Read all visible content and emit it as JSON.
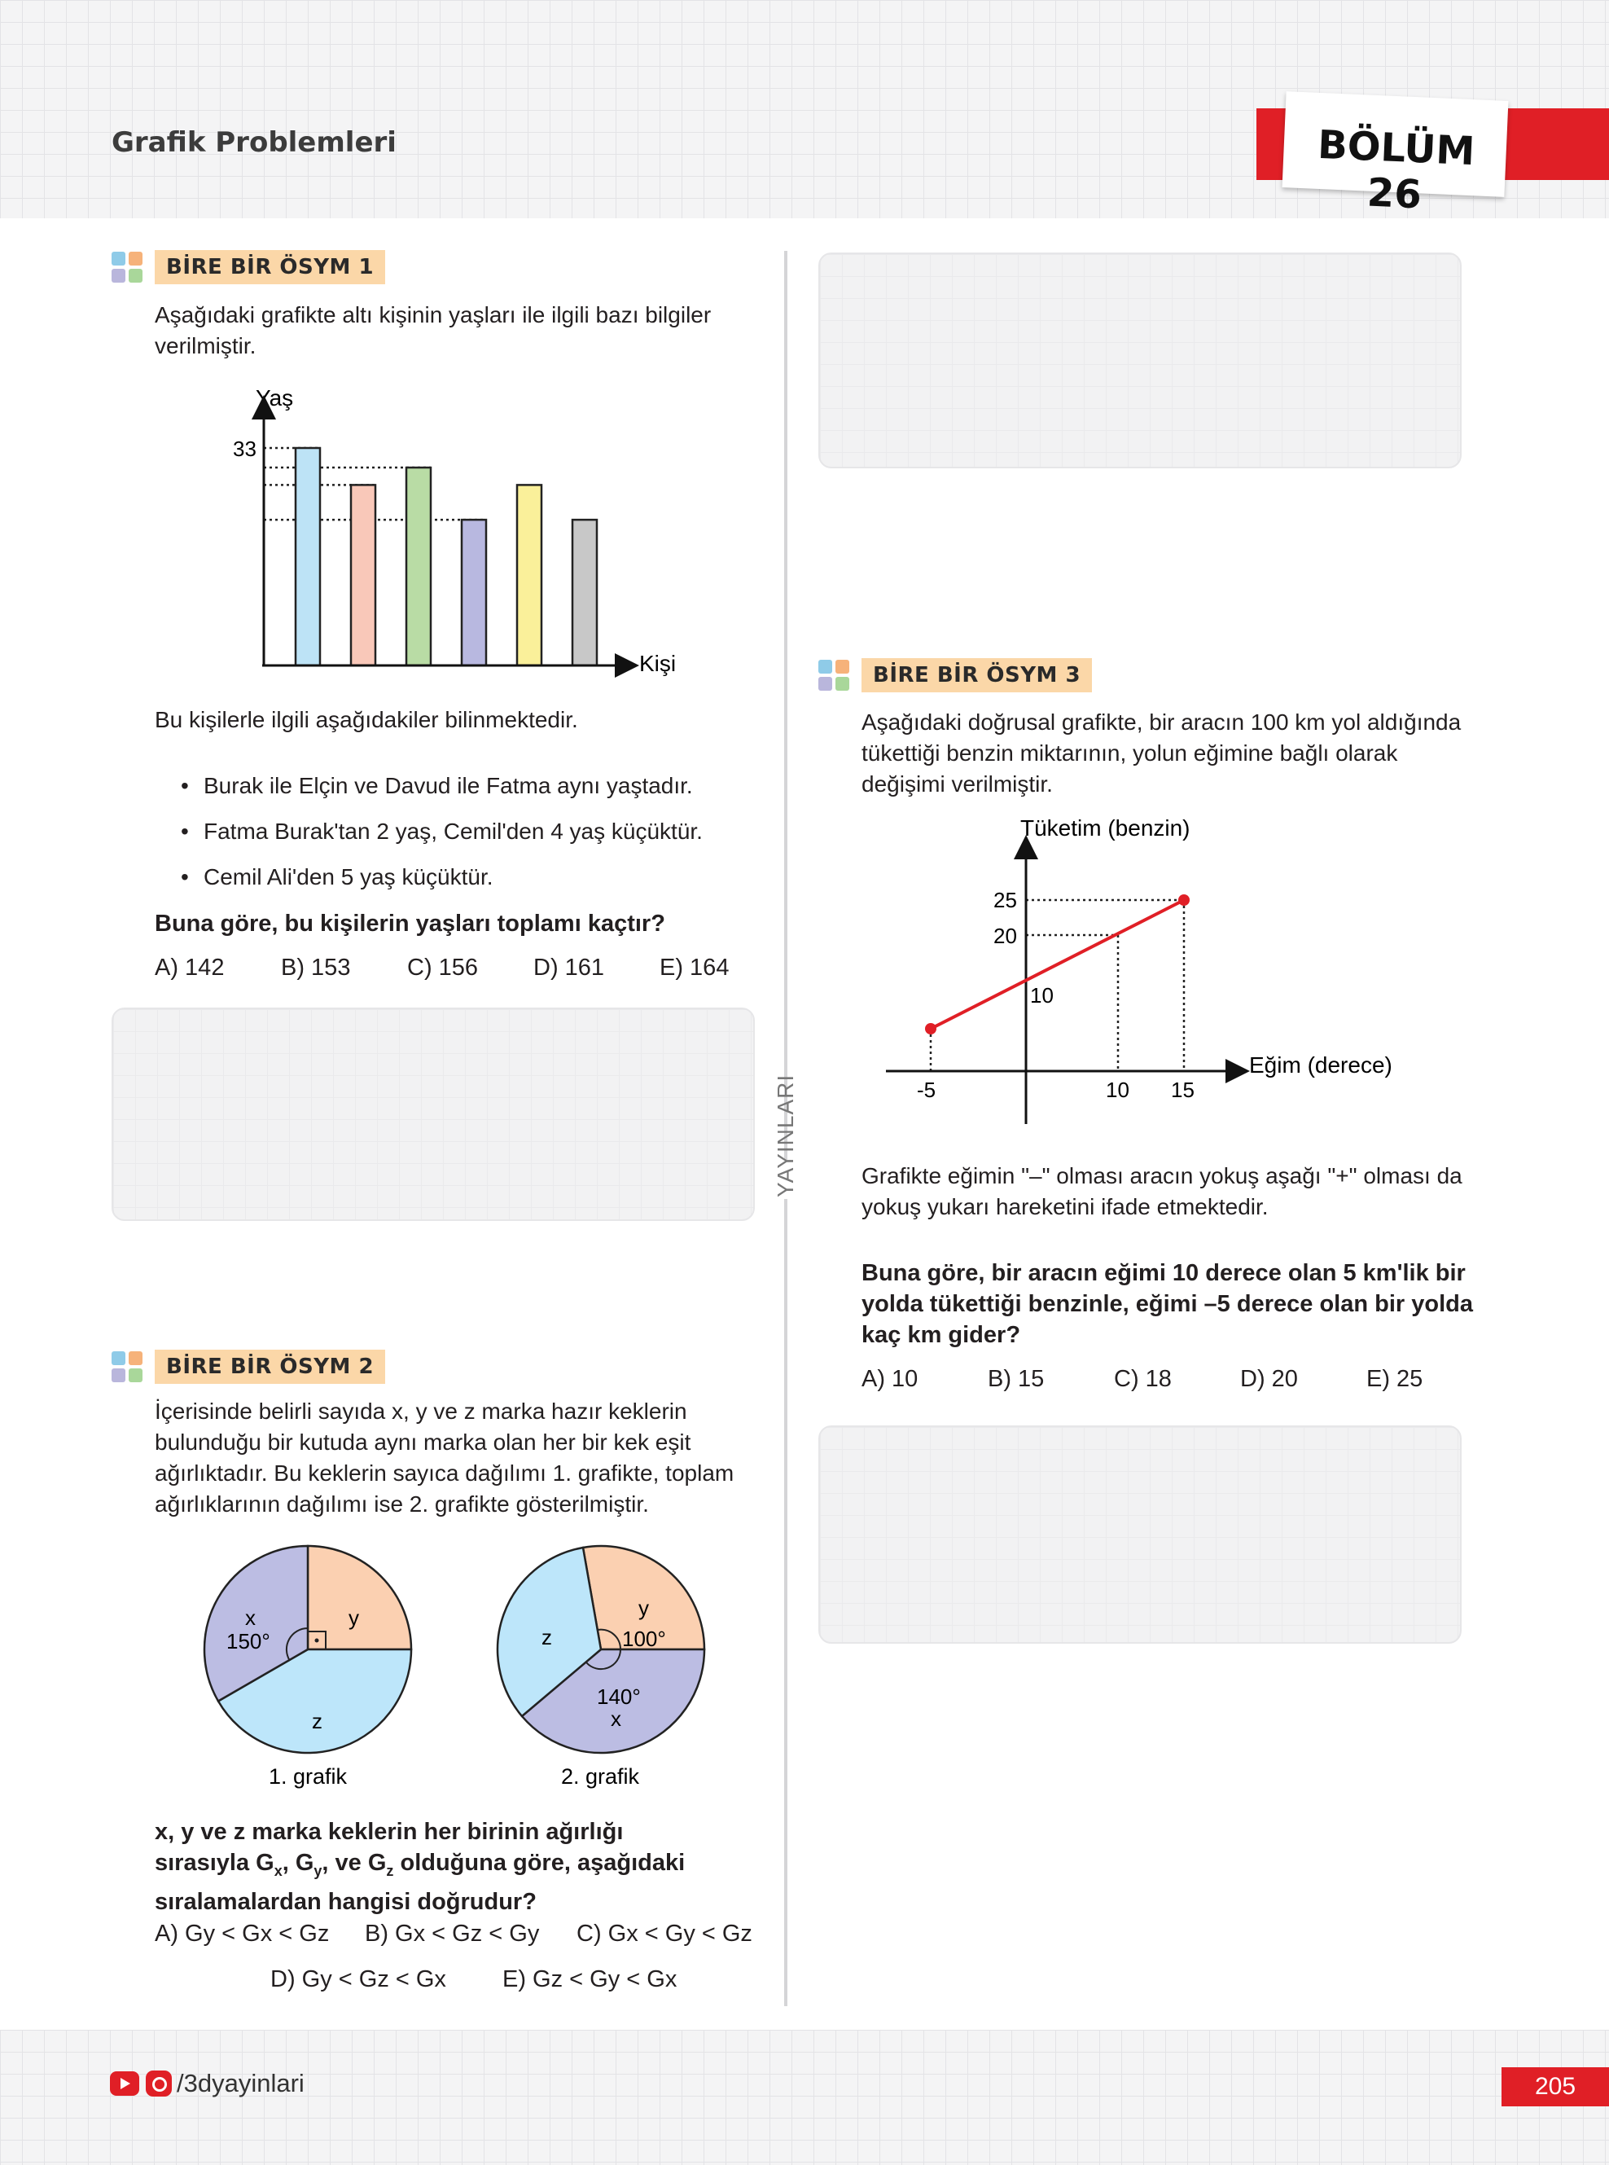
{
  "header": {
    "title": "Grafik Problemleri",
    "chapter": "BÖLÜM 26"
  },
  "q1": {
    "label": "BİRE BİR ÖSYM 1",
    "intro": "Aşağıdaki grafikte altı kişinin yaşları ile ilgili bazı bilgiler verilmiştir.",
    "chart_data": {
      "type": "bar",
      "ylabel": "Yaş",
      "xlabel": "Kişi",
      "y_tick": "33",
      "bars": [
        {
          "color": "#bde3f6"
        },
        {
          "color": "#f9c8b9"
        },
        {
          "color": "#b9dca5"
        },
        {
          "color": "#b8b8e0"
        },
        {
          "color": "#faf09a"
        },
        {
          "color": "#c8c8c8"
        }
      ],
      "relative_heights": [
        1.0,
        0.83,
        0.91,
        0.67,
        0.83,
        0.67
      ]
    },
    "known": "Bu kişilerle ilgili aşağıdakiler bilinmektedir.",
    "bullets": [
      "Burak ile Elçin ve Davud ile Fatma aynı yaştadır.",
      "Fatma Burak'tan 2 yaş, Cemil'den 4 yaş küçüktür.",
      "Cemil Ali'den 5 yaş küçüktür."
    ],
    "question": "Buna göre, bu kişilerin yaşları toplamı kaçtır?",
    "options": [
      "A) 142",
      "B) 153",
      "C) 156",
      "D) 161",
      "E) 164"
    ]
  },
  "q2": {
    "label": "BİRE BİR ÖSYM 2",
    "intro": "İçerisinde belirli sayıda x, y ve z marka hazır keklerin bulunduğu bir kutuda aynı marka olan her bir kek eşit ağırlıktadır. Bu keklerin sayıca dağılımı 1. grafikte, toplam ağırlıklarının dağılımı ise 2. grafikte gösterilmiştir.",
    "chart_data": [
      {
        "type": "pie",
        "caption": "1. grafik",
        "slices": [
          {
            "name": "x",
            "angle_label": "150°",
            "degrees": 150,
            "color": "#bcbde3"
          },
          {
            "name": "y",
            "angle_label": "",
            "degrees": 90,
            "color": "#fbd0b1"
          },
          {
            "name": "z",
            "angle_label": "",
            "degrees": 120,
            "color": "#bde6fa"
          }
        ]
      },
      {
        "type": "pie",
        "caption": "2. grafik",
        "slices": [
          {
            "name": "y",
            "angle_label": "100°",
            "degrees": 100,
            "color": "#fbd0b1"
          },
          {
            "name": "x",
            "angle_label": "140°",
            "degrees": 140,
            "color": "#bcbde3"
          },
          {
            "name": "z",
            "angle_label": "",
            "degrees": 120,
            "color": "#bde6fa"
          }
        ]
      }
    ],
    "question": "x, y ve z marka keklerin her birinin ağırlığı sırasıyla Gx, Gy, ve Gz olduğuna göre, aşağıdaki sıralamalardan hangisi doğrudur?",
    "q_line1": "x, y ve z marka keklerin her birinin ağırlığı",
    "q_line2a": "sırasıyla G",
    "q_line2b": ", G",
    "q_line2c": ", ve G",
    "q_line2d": " olduğuna göre, aşağıdaki",
    "q_line3": "sıralamalardan hangisi doğrudur?",
    "options": [
      "A) Gy < Gx < Gz",
      "B) Gx < Gz < Gy",
      "C) Gx < Gy < Gz",
      "D) Gy < Gz < Gx",
      "E) Gz < Gy < Gx"
    ]
  },
  "q3": {
    "label": "BİRE BİR ÖSYM 3",
    "intro": "Aşağıdaki doğrusal grafikte, bir aracın 100 km yol aldığında tükettiği benzin miktarının, yolun eğimine bağlı olarak değişimi verilmiştir.",
    "chart_data": {
      "type": "line",
      "ylabel": "Tüketim (benzin)",
      "xlabel": "Eğim (derece)",
      "x": [
        -5,
        0,
        10,
        15
      ],
      "y": [
        null,
        10,
        20,
        25
      ],
      "x_ticks": [
        "-5",
        "10",
        "15"
      ],
      "y_ticks": [
        "25",
        "20",
        "10"
      ],
      "color": "#e01f26"
    },
    "note": "Grafikte eğimin \"–\" olması aracın yokuş aşağı \"+\" olması da yokuş yukarı hareketini ifade etmektedir.",
    "question": "Buna göre, bir aracın eğimi 10 derece olan 5 km'lik bir yolda tükettiği benzinle, eğimi –5 derece olan bir yolda kaç km gider?",
    "options": [
      "A) 10",
      "B) 15",
      "C) 18",
      "D) 20",
      "E) 25"
    ]
  },
  "side_label": "YAYINLARI",
  "footer": {
    "social": "/3dyayinlari",
    "page": "205"
  },
  "colors": {
    "accent": "#e01f26",
    "label_bg": "#fbd7a8"
  }
}
